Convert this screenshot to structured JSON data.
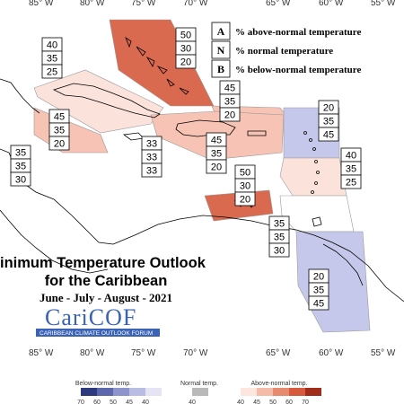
{
  "title": {
    "line1": "inimum Temperature Outlook",
    "line2": "for the Caribbean",
    "line3": "June - July - August - 2021"
  },
  "logo": {
    "name": "CariCOF",
    "subtitle": "CARIBBEAN CLIMATE OUTLOOK FORUM"
  },
  "longitude_labels": [
    "85° W",
    "80° W",
    "75° W",
    "70° W",
    "65° W",
    "60° W",
    "55° W"
  ],
  "legend": {
    "items": [
      {
        "key": "A",
        "text": "% above-normal temperature"
      },
      {
        "key": "N",
        "text": "% normal temperature"
      },
      {
        "key": "B",
        "text": "% below-normal temperature"
      }
    ]
  },
  "regions": [
    {
      "name": "bahamas",
      "above": "50",
      "normal": "30",
      "below": "20",
      "color": "#d9694f"
    },
    {
      "name": "cuba",
      "above": "40",
      "normal": "35",
      "below": "25",
      "color": "#fbe3dc"
    },
    {
      "name": "belize-east",
      "above": "45",
      "normal": "35",
      "below": "20",
      "color": "#f6c3b4"
    },
    {
      "name": "central-america",
      "above": "35",
      "normal": "35",
      "below": "30",
      "color": "#ffffff"
    },
    {
      "name": "cayman-jamaica",
      "above": "33",
      "normal": "33",
      "below": "33",
      "color": "#ffffff"
    },
    {
      "name": "turks-caicos",
      "above": "45",
      "normal": "35",
      "below": "20",
      "color": "#f6c3b4"
    },
    {
      "name": "hispaniola",
      "above": "45",
      "normal": "35",
      "below": "20",
      "color": "#f6c3b4"
    },
    {
      "name": "leeward-islands",
      "above": "20",
      "normal": "35",
      "below": "45",
      "color": "#c6c8eb"
    },
    {
      "name": "windward-islands",
      "above": "40",
      "normal": "35",
      "below": "25",
      "color": "#fbe3dc"
    },
    {
      "name": "abc-islands",
      "above": "50",
      "normal": "30",
      "below": "20",
      "color": "#d9694f"
    },
    {
      "name": "trinidad-venezuela",
      "above": "35",
      "normal": "35",
      "below": "30",
      "color": "#ffffff"
    },
    {
      "name": "guianas",
      "above": "20",
      "normal": "35",
      "below": "45",
      "color": "#c6c8eb"
    }
  ],
  "color_scale": {
    "below_label": "Below-normal temp.",
    "normal_label": "Normal temp.",
    "above_label": "Above-normal temp.",
    "below_values": [
      "70",
      "60",
      "50",
      "45",
      "40"
    ],
    "normal_value": "40",
    "above_values": [
      "40",
      "45",
      "50",
      "60",
      "70"
    ],
    "below_colors": [
      "#2d3a7d",
      "#5d67ad",
      "#8e93cc",
      "#b9bce3",
      "#e4e4f4"
    ],
    "normal_color": "#b9b9b9",
    "above_colors": [
      "#fce6de",
      "#f4bba8",
      "#e88a70",
      "#d65a3c",
      "#a02c1c"
    ]
  }
}
